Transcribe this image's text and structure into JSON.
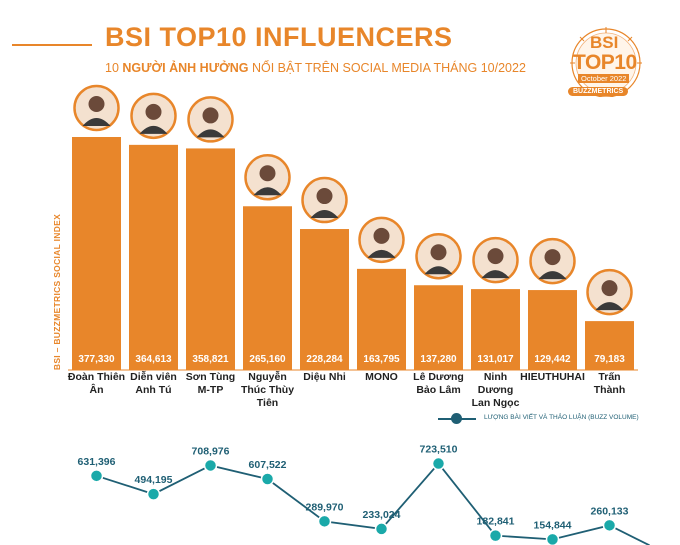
{
  "header": {
    "title": "BSI TOP10 INFLUENCERS",
    "subtitle_a": "10 ",
    "subtitle_b": "NGƯỜI ẢNH HƯỞNG",
    "subtitle_c": " NỔI BẬT TRÊN SOCIAL MEDIA THÁNG 10/2022"
  },
  "badge": {
    "line1": "BSI",
    "line2": "TOP10",
    "line3": "October 2022",
    "line4": "BUZZMETRICS"
  },
  "colors": {
    "accent": "#e8862a",
    "line": "#1f5f74",
    "dot": "#1aa9a9"
  },
  "chart_data": [
    {
      "type": "bar",
      "title": "",
      "ylabel": "BSI – BUZZMETRICS SOCIAL INDEX",
      "categories": [
        [
          "Đoàn Thiên",
          "Ân"
        ],
        [
          "Diễn viên",
          "Anh Tú"
        ],
        [
          "Sơn Tùng",
          "M-TP"
        ],
        [
          "Nguyễn",
          "Thúc Thùy",
          "Tiên"
        ],
        [
          "Diệu Nhi"
        ],
        [
          "MONO"
        ],
        [
          "Lê Dương",
          "Bảo Lâm"
        ],
        [
          "Ninh",
          "Dương",
          "Lan Ngọc"
        ],
        [
          "HIEUTHUHAI"
        ],
        [
          "Trấn",
          "Thành"
        ]
      ],
      "values": [
        377330,
        364613,
        358821,
        265160,
        228284,
        163795,
        137280,
        131017,
        129442,
        79183
      ],
      "value_labels": [
        "377,330",
        "364,613",
        "358,821",
        "265,160",
        "228,284",
        "163,795",
        "137,280",
        "131,017",
        "129,442",
        "79,183"
      ],
      "ylim": [
        0,
        400000
      ]
    },
    {
      "type": "line",
      "name": "LƯỢNG BÀI VIẾT VÀ THẢO LUẬN (BUZZ VOLUME)",
      "values": [
        631396,
        494195,
        708976,
        607522,
        289970,
        233024,
        723510,
        182841,
        154844,
        260133
      ],
      "value_labels": [
        "631,396",
        "494,195",
        "708,976",
        "607,522",
        "289,970",
        "233,024",
        "723,510",
        "182,841",
        "154,844",
        "260,133"
      ],
      "ylim": [
        0,
        900000
      ]
    }
  ]
}
